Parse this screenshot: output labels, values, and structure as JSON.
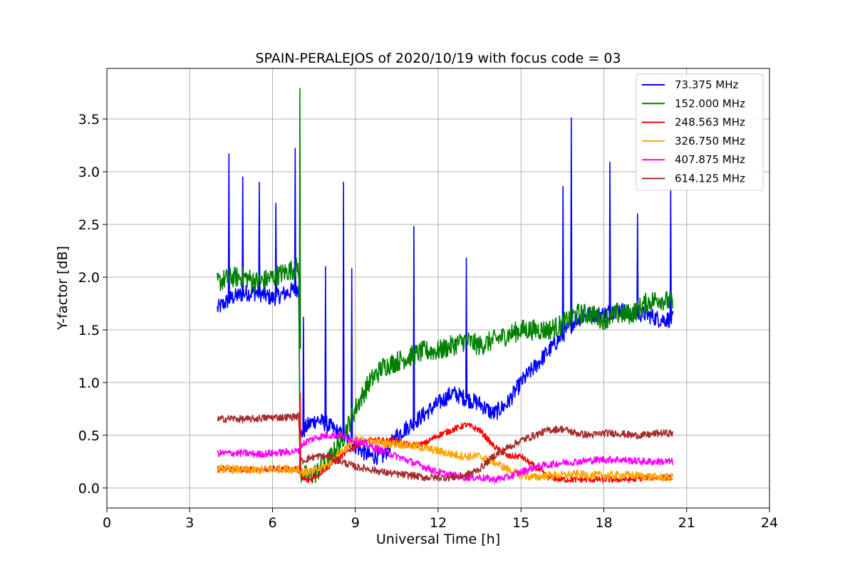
{
  "chart_data": {
    "type": "line",
    "title": "SPAIN-PERALEJOS of 2020/10/19 with focus code = 03",
    "xlabel": "Universal Time [h]",
    "ylabel": "Y-factor [dB]",
    "xlim": [
      0,
      24
    ],
    "ylim": [
      -0.19,
      3.98
    ],
    "xticks": [
      0,
      3,
      6,
      9,
      12,
      15,
      18,
      21,
      24
    ],
    "xtick_labels": [
      "0",
      "3",
      "6",
      "9",
      "12",
      "15",
      "18",
      "21",
      "24"
    ],
    "yticks": [
      0.0,
      0.5,
      1.0,
      1.5,
      2.0,
      2.5,
      3.0,
      3.5
    ],
    "ytick_labels": [
      "0.0",
      "0.5",
      "1.0",
      "1.5",
      "2.0",
      "2.5",
      "3.0",
      "3.5"
    ],
    "grid": true,
    "legend_position": "top-right",
    "series": [
      {
        "name": " 73.375 MHz",
        "color": "#0000ff",
        "noise": 0.08,
        "x": [
          4.0,
          4.5,
          5.0,
          5.5,
          6.0,
          6.5,
          6.95,
          7.0,
          7.3,
          7.6,
          8.0,
          8.5,
          9.0,
          9.5,
          10.0,
          10.5,
          11.0,
          11.5,
          12.0,
          12.5,
          13.0,
          13.5,
          14.0,
          14.5,
          15.0,
          15.5,
          16.0,
          16.5,
          17.0,
          17.5,
          18.0,
          18.5,
          19.0,
          19.5,
          20.0,
          20.5
        ],
        "y": [
          1.7,
          1.8,
          1.85,
          1.85,
          1.8,
          1.85,
          1.9,
          0.5,
          0.6,
          0.65,
          0.6,
          0.5,
          0.4,
          0.3,
          0.3,
          0.5,
          0.6,
          0.7,
          0.8,
          0.9,
          0.85,
          0.8,
          0.7,
          0.8,
          1.0,
          1.15,
          1.3,
          1.45,
          1.6,
          1.65,
          1.65,
          1.7,
          1.65,
          1.65,
          1.6,
          1.6
        ],
        "spikes": [
          [
            4.4,
            3.17
          ],
          [
            4.9,
            2.95
          ],
          [
            5.5,
            2.9
          ],
          [
            6.1,
            2.7
          ],
          [
            6.8,
            3.22
          ],
          [
            7.1,
            1.62
          ],
          [
            7.9,
            2.1
          ],
          [
            8.55,
            2.9
          ],
          [
            8.85,
            2.08
          ],
          [
            11.1,
            2.48
          ],
          [
            13.0,
            2.18
          ],
          [
            16.5,
            2.86
          ],
          [
            16.8,
            3.51
          ],
          [
            18.2,
            3.09
          ],
          [
            19.2,
            2.6
          ],
          [
            20.4,
            2.84
          ]
        ]
      },
      {
        "name": "152.000 MHz",
        "color": "#008000",
        "noise": 0.1,
        "x": [
          4.0,
          4.5,
          5.0,
          5.5,
          6.0,
          6.5,
          6.95,
          7.0,
          7.3,
          7.6,
          8.0,
          8.5,
          9.0,
          9.5,
          10.0,
          10.5,
          11.0,
          11.5,
          12.0,
          12.5,
          13.0,
          13.5,
          14.0,
          14.5,
          15.0,
          15.5,
          16.0,
          16.5,
          17.0,
          17.5,
          18.0,
          18.5,
          19.0,
          19.5,
          20.0,
          20.5
        ],
        "y": [
          1.95,
          2.0,
          2.0,
          1.95,
          2.0,
          2.05,
          2.1,
          0.15,
          0.1,
          0.15,
          0.25,
          0.45,
          0.75,
          1.0,
          1.15,
          1.2,
          1.25,
          1.3,
          1.3,
          1.35,
          1.4,
          1.35,
          1.4,
          1.45,
          1.5,
          1.5,
          1.5,
          1.55,
          1.65,
          1.65,
          1.6,
          1.65,
          1.65,
          1.75,
          1.8,
          1.75
        ],
        "spikes": [
          [
            6.97,
            3.79
          ]
        ]
      },
      {
        "name": "248.563 MHz",
        "color": "#ff0000",
        "noise": 0.03,
        "x": [
          4.0,
          4.5,
          5.0,
          5.5,
          6.0,
          6.5,
          6.95,
          7.0,
          7.3,
          7.6,
          8.0,
          8.5,
          9.0,
          9.5,
          10.0,
          10.5,
          11.0,
          11.5,
          12.0,
          12.5,
          13.0,
          13.5,
          14.0,
          14.5,
          15.0,
          15.5,
          16.0,
          16.5,
          17.0,
          17.5,
          18.0,
          18.5,
          19.0,
          19.5,
          20.0,
          20.5
        ],
        "y": [
          0.18,
          0.18,
          0.17,
          0.18,
          0.18,
          0.18,
          0.18,
          0.1,
          0.07,
          0.12,
          0.2,
          0.3,
          0.4,
          0.45,
          0.45,
          0.45,
          0.4,
          0.42,
          0.5,
          0.55,
          0.6,
          0.55,
          0.4,
          0.3,
          0.3,
          0.2,
          0.1,
          0.08,
          0.08,
          0.08,
          0.08,
          0.08,
          0.08,
          0.1,
          0.1,
          0.1
        ],
        "spikes": [
          [
            6.98,
            0.9
          ]
        ]
      },
      {
        "name": "326.750 MHz",
        "color": "#ffa500",
        "noise": 0.04,
        "x": [
          4.0,
          4.5,
          5.0,
          5.5,
          6.0,
          6.5,
          6.95,
          7.0,
          7.3,
          7.6,
          8.0,
          8.5,
          9.0,
          9.5,
          10.0,
          10.5,
          11.0,
          11.5,
          12.0,
          12.5,
          13.0,
          13.5,
          14.0,
          14.5,
          15.0,
          15.5,
          16.0,
          16.5,
          17.0,
          17.5,
          18.0,
          18.5,
          19.0,
          19.5,
          20.0,
          20.5
        ],
        "y": [
          0.18,
          0.18,
          0.17,
          0.17,
          0.18,
          0.18,
          0.18,
          0.15,
          0.15,
          0.17,
          0.22,
          0.35,
          0.45,
          0.45,
          0.42,
          0.42,
          0.4,
          0.38,
          0.35,
          0.32,
          0.3,
          0.3,
          0.25,
          0.18,
          0.12,
          0.1,
          0.12,
          0.12,
          0.13,
          0.12,
          0.12,
          0.12,
          0.12,
          0.11,
          0.1,
          0.1
        ],
        "spikes": []
      },
      {
        "name": "407.875 MHz",
        "color": "#ff00ff",
        "noise": 0.035,
        "x": [
          4.0,
          4.5,
          5.0,
          5.5,
          6.0,
          6.5,
          6.95,
          7.0,
          7.3,
          7.6,
          8.0,
          8.5,
          9.0,
          9.5,
          10.0,
          10.5,
          11.0,
          11.5,
          12.0,
          12.5,
          13.0,
          13.5,
          14.0,
          14.5,
          15.0,
          15.5,
          16.0,
          16.5,
          17.0,
          17.5,
          18.0,
          18.5,
          19.0,
          19.5,
          20.0,
          20.5
        ],
        "y": [
          0.33,
          0.33,
          0.33,
          0.32,
          0.33,
          0.34,
          0.35,
          0.4,
          0.45,
          0.48,
          0.5,
          0.5,
          0.45,
          0.4,
          0.35,
          0.3,
          0.25,
          0.2,
          0.15,
          0.12,
          0.1,
          0.1,
          0.08,
          0.1,
          0.15,
          0.2,
          0.22,
          0.24,
          0.25,
          0.26,
          0.27,
          0.27,
          0.26,
          0.25,
          0.25,
          0.25
        ],
        "spikes": []
      },
      {
        "name": "614.125 MHz",
        "color": "#a52a2a",
        "noise": 0.035,
        "x": [
          4.0,
          4.5,
          5.0,
          5.5,
          6.0,
          6.5,
          6.95,
          7.0,
          7.3,
          7.6,
          8.0,
          8.5,
          9.0,
          9.5,
          10.0,
          10.5,
          11.0,
          11.5,
          12.0,
          12.5,
          13.0,
          13.5,
          14.0,
          14.5,
          15.0,
          15.5,
          16.0,
          16.5,
          17.0,
          17.5,
          18.0,
          18.5,
          19.0,
          19.5,
          20.0,
          20.5
        ],
        "y": [
          0.65,
          0.66,
          0.65,
          0.66,
          0.67,
          0.67,
          0.68,
          0.25,
          0.28,
          0.3,
          0.3,
          0.25,
          0.2,
          0.18,
          0.15,
          0.13,
          0.12,
          0.1,
          0.1,
          0.1,
          0.12,
          0.18,
          0.3,
          0.38,
          0.45,
          0.5,
          0.55,
          0.56,
          0.52,
          0.5,
          0.52,
          0.52,
          0.5,
          0.5,
          0.52,
          0.52
        ],
        "spikes": []
      }
    ]
  }
}
